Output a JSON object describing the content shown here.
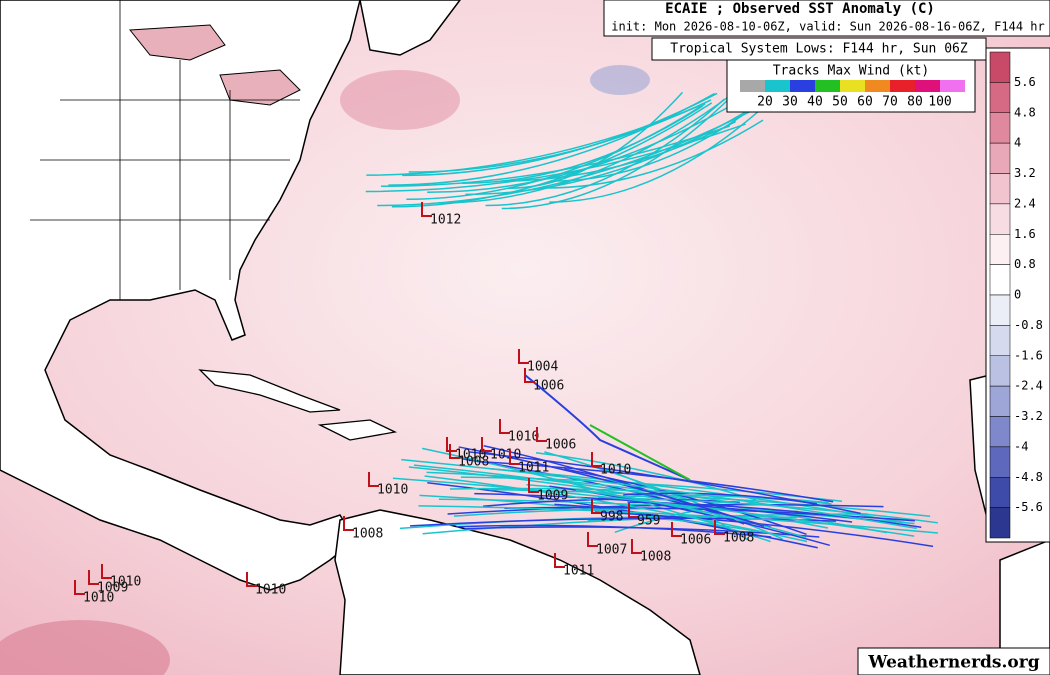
{
  "header": {
    "title": "ECAIE ; Observed SST Anomaly (C)",
    "subtitle": "init: Mon 2026-08-10-06Z, valid: Sun 2026-08-16-06Z, F144 hr",
    "box_title": "Tropical System Lows: F144 hr, Sun 06Z"
  },
  "wind_legend": {
    "title": "Tracks Max Wind (kt)",
    "labels": [
      "20",
      "30",
      "40",
      "50",
      "60",
      "70",
      "80",
      "100"
    ]
  },
  "colorbar": {
    "labels": [
      "5.6",
      "4.8",
      "4",
      "3.2",
      "2.4",
      "1.6",
      "0.8",
      "0",
      "-0.8",
      "-1.6",
      "-2.4",
      "-3.2",
      "-4",
      "-4.8",
      "-5.6"
    ]
  },
  "lows": [
    "1012",
    "1004",
    "1006",
    "1010",
    "1006",
    "1010",
    "1008",
    "1010",
    "1011",
    "1010",
    "1010",
    "1008",
    "1009",
    "998",
    "959",
    "1006",
    "1008",
    "1007",
    "1008",
    "1011",
    "1010",
    "1009",
    "1010",
    "1010"
  ],
  "watermark": "Weathernerds.org"
}
